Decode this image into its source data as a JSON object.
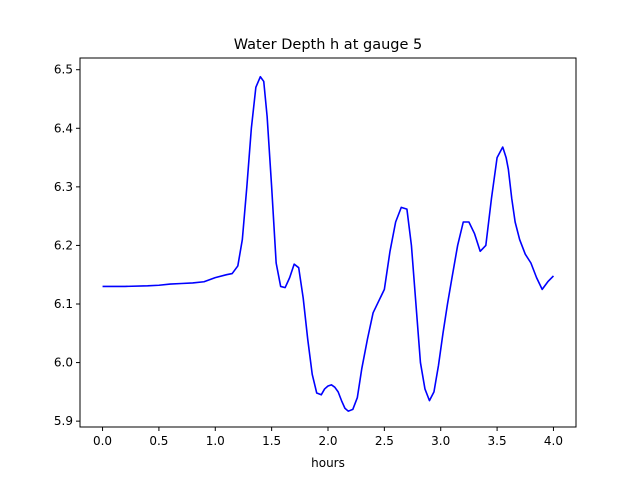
{
  "chart_data": {
    "type": "line",
    "title": "Water Depth h at gauge 5",
    "xlabel": "hours",
    "ylabel": "",
    "xlim": [
      -0.2,
      4.2
    ],
    "ylim": [
      5.89,
      6.52
    ],
    "xticks": [
      {
        "value": 0.0,
        "label": "0.0"
      },
      {
        "value": 0.5,
        "label": "0.5"
      },
      {
        "value": 1.0,
        "label": "1.0"
      },
      {
        "value": 1.5,
        "label": "1.5"
      },
      {
        "value": 2.0,
        "label": "2.0"
      },
      {
        "value": 2.5,
        "label": "2.5"
      },
      {
        "value": 3.0,
        "label": "3.0"
      },
      {
        "value": 3.5,
        "label": "3.5"
      },
      {
        "value": 4.0,
        "label": "4.0"
      }
    ],
    "yticks": [
      {
        "value": 5.9,
        "label": "5.9"
      },
      {
        "value": 6.0,
        "label": "6.0"
      },
      {
        "value": 6.1,
        "label": "6.1"
      },
      {
        "value": 6.2,
        "label": "6.2"
      },
      {
        "value": 6.3,
        "label": "6.3"
      },
      {
        "value": 6.4,
        "label": "6.4"
      },
      {
        "value": 6.5,
        "label": "6.5"
      }
    ],
    "grid": false,
    "legend": "none",
    "series": [
      {
        "color": "#0000ff",
        "x": [
          0.0,
          0.2,
          0.4,
          0.5,
          0.6,
          0.7,
          0.8,
          0.9,
          1.0,
          1.1,
          1.15,
          1.2,
          1.24,
          1.28,
          1.32,
          1.36,
          1.4,
          1.43,
          1.46,
          1.5,
          1.54,
          1.58,
          1.62,
          1.66,
          1.7,
          1.74,
          1.78,
          1.82,
          1.86,
          1.9,
          1.94,
          1.97,
          2.0,
          2.03,
          2.06,
          2.09,
          2.12,
          2.15,
          2.18,
          2.22,
          2.26,
          2.3,
          2.35,
          2.4,
          2.45,
          2.5,
          2.55,
          2.6,
          2.65,
          2.7,
          2.74,
          2.78,
          2.82,
          2.86,
          2.9,
          2.94,
          2.98,
          3.02,
          3.06,
          3.1,
          3.15,
          3.2,
          3.25,
          3.3,
          3.35,
          3.4,
          3.45,
          3.5,
          3.55,
          3.58,
          3.6,
          3.63,
          3.66,
          3.7,
          3.75,
          3.8,
          3.85,
          3.9,
          3.95,
          4.0
        ],
        "y": [
          6.13,
          6.13,
          6.131,
          6.132,
          6.134,
          6.135,
          6.136,
          6.138,
          6.145,
          6.15,
          6.152,
          6.165,
          6.21,
          6.3,
          6.4,
          6.47,
          6.488,
          6.48,
          6.42,
          6.3,
          6.17,
          6.13,
          6.128,
          6.145,
          6.168,
          6.162,
          6.11,
          6.04,
          5.98,
          5.948,
          5.945,
          5.955,
          5.96,
          5.962,
          5.958,
          5.95,
          5.935,
          5.922,
          5.917,
          5.92,
          5.94,
          5.99,
          6.04,
          6.085,
          6.105,
          6.125,
          6.19,
          6.24,
          6.265,
          6.262,
          6.2,
          6.1,
          6.0,
          5.955,
          5.935,
          5.95,
          5.995,
          6.05,
          6.1,
          6.145,
          6.2,
          6.24,
          6.24,
          6.22,
          6.19,
          6.2,
          6.28,
          6.35,
          6.368,
          6.35,
          6.33,
          6.28,
          6.24,
          6.21,
          6.185,
          6.17,
          6.145,
          6.125,
          6.138,
          6.148
        ]
      }
    ]
  }
}
